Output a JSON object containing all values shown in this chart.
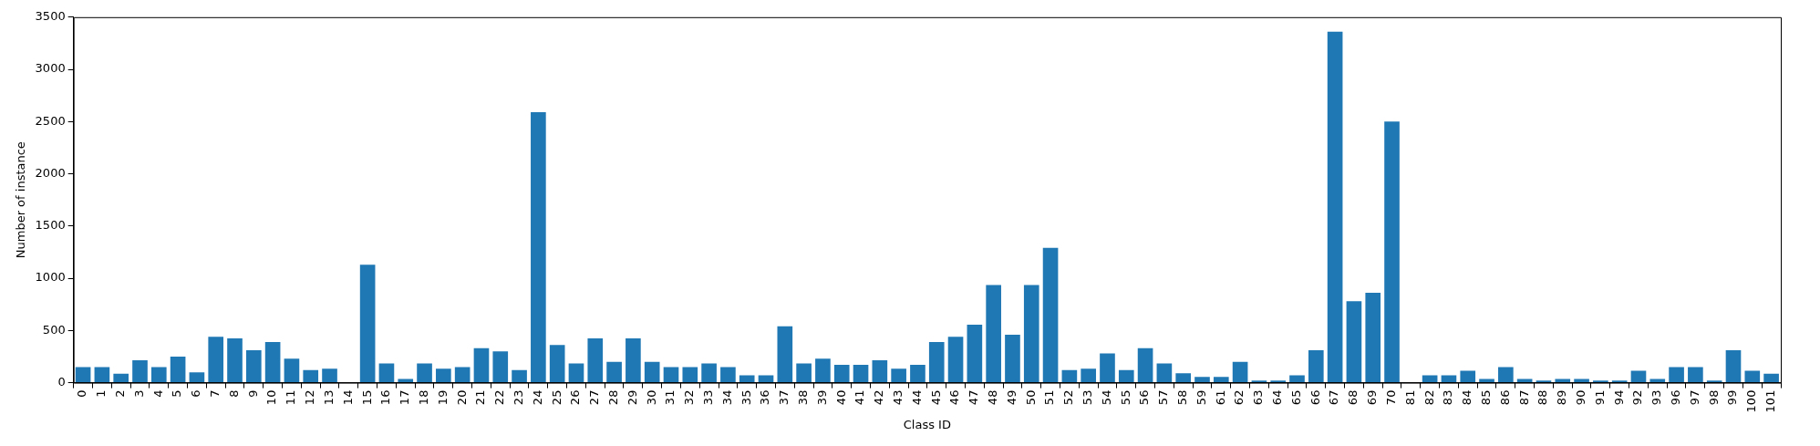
{
  "chart_data": {
    "type": "bar",
    "xlabel": "Class ID",
    "ylabel": "Number of instance",
    "categories": [
      "0",
      "1",
      "2",
      "3",
      "4",
      "5",
      "6",
      "7",
      "8",
      "9",
      "10",
      "11",
      "12",
      "13",
      "14",
      "15",
      "16",
      "17",
      "18",
      "19",
      "20",
      "21",
      "22",
      "23",
      "24",
      "25",
      "26",
      "27",
      "28",
      "29",
      "30",
      "31",
      "32",
      "33",
      "34",
      "35",
      "36",
      "37",
      "38",
      "39",
      "40",
      "41",
      "42",
      "43",
      "44",
      "45",
      "46",
      "47",
      "48",
      "49",
      "50",
      "51",
      "52",
      "53",
      "54",
      "55",
      "56",
      "57",
      "58",
      "59",
      "61",
      "62",
      "63",
      "64",
      "65",
      "66",
      "67",
      "68",
      "69",
      "70",
      "81",
      "82",
      "83",
      "84",
      "85",
      "86",
      "87",
      "88",
      "89",
      "90",
      "91",
      "94",
      "92",
      "93",
      "96",
      "97",
      "98",
      "99",
      "100",
      "101"
    ],
    "values": [
      150,
      150,
      85,
      215,
      150,
      250,
      100,
      440,
      425,
      310,
      390,
      230,
      120,
      135,
      0,
      1130,
      185,
      35,
      185,
      135,
      150,
      330,
      300,
      120,
      2590,
      360,
      185,
      425,
      200,
      425,
      200,
      150,
      150,
      185,
      150,
      70,
      70,
      540,
      185,
      230,
      170,
      170,
      215,
      135,
      170,
      390,
      440,
      555,
      935,
      460,
      935,
      1290,
      120,
      135,
      280,
      120,
      330,
      185,
      90,
      55,
      55,
      200,
      20,
      20,
      70,
      310,
      3360,
      780,
      860,
      2500,
      0,
      70,
      70,
      115,
      35,
      150,
      35,
      20,
      35,
      35,
      20,
      20,
      115,
      35,
      150,
      150,
      20,
      310,
      115,
      85
    ],
    "color": "#1f77b4",
    "ylim": [
      0,
      3500
    ],
    "yticks": [
      0,
      500,
      1000,
      1500,
      2000,
      2500,
      3000,
      3500
    ]
  }
}
